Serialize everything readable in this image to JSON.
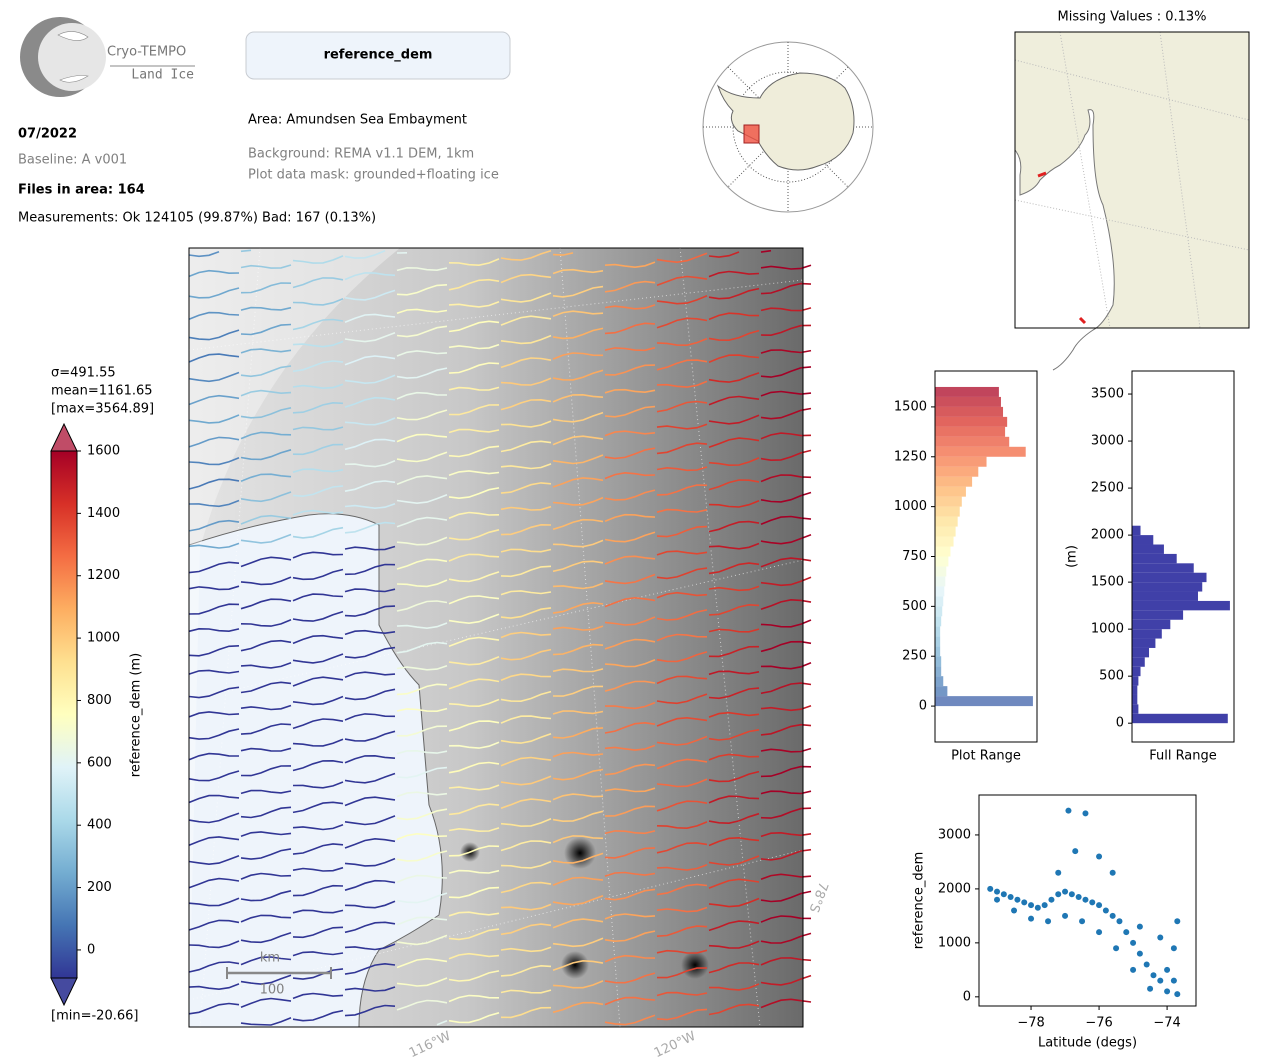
{
  "logo": {
    "title": "Cryo-TEMPO",
    "subtitle": "Land Ice"
  },
  "header": {
    "parameter": "reference_dem",
    "date": "07/2022",
    "baseline": "Baseline: A v001",
    "files": "Files in area: 164",
    "measurements": "Measurements: Ok 124105 (99.87%) Bad: 167 (0.13%)",
    "area": "Area: Amundsen Sea Embayment",
    "background": "Background: REMA v1.1 DEM, 1km",
    "mask": "Plot data mask: grounded+floating ice",
    "missing": "Missing Values : 0.13%"
  },
  "colorbar": {
    "label": "reference_dem (m)",
    "stats": [
      "σ=491.55",
      "mean=1161.65",
      "[max=3564.89]"
    ],
    "min_label": "[min=-20.66]",
    "ylim": [
      -90,
      1600
    ],
    "yticks": [
      0,
      200,
      400,
      600,
      800,
      1000,
      1200,
      1400,
      1600
    ],
    "colormap": [
      "#313695",
      "#4575b4",
      "#74add1",
      "#abd9e9",
      "#e0f3f8",
      "#ffffbf",
      "#fee090",
      "#fdae61",
      "#f46d43",
      "#d73027",
      "#a50026"
    ]
  },
  "map": {
    "lon_labels": [
      "116°W",
      "120°W"
    ],
    "lat_labels": [
      "78°S"
    ],
    "scale_unit": "km",
    "scale_length": "100"
  },
  "chart_data": [
    {
      "type": "histogram",
      "xlabel": "Plot Range",
      "ylim": [
        -180,
        1680
      ],
      "yticks": [
        0,
        250,
        500,
        750,
        1000,
        1250,
        1500
      ],
      "bins": [
        0,
        50,
        100,
        150,
        200,
        250,
        300,
        350,
        400,
        450,
        500,
        550,
        600,
        650,
        700,
        750,
        800,
        850,
        900,
        950,
        1000,
        1050,
        1100,
        1150,
        1200,
        1250,
        1300,
        1350,
        1400,
        1450,
        1500,
        1550,
        1600
      ],
      "counts": [
        95,
        12,
        8,
        6,
        6,
        5,
        5,
        5,
        6,
        7,
        8,
        9,
        10,
        11,
        13,
        15,
        18,
        20,
        22,
        24,
        26,
        30,
        36,
        42,
        50,
        88,
        72,
        68,
        70,
        66,
        64,
        62
      ]
    },
    {
      "type": "histogram",
      "xlabel": "Full Range",
      "ylabel": "(m)",
      "color": "#4040a8",
      "ylim": [
        -200,
        3745
      ],
      "yticks": [
        0,
        500,
        1000,
        1500,
        2000,
        2500,
        3000,
        3500
      ],
      "bins": [
        0,
        100,
        200,
        300,
        400,
        500,
        600,
        700,
        800,
        900,
        1000,
        1100,
        1200,
        1300,
        1400,
        1500,
        1600,
        1700,
        1800,
        1900,
        2000,
        2100
      ],
      "counts": [
        90,
        6,
        5,
        5,
        6,
        8,
        12,
        16,
        22,
        28,
        36,
        48,
        92,
        62,
        66,
        70,
        58,
        42,
        30,
        20,
        8
      ]
    },
    {
      "type": "scatter",
      "xlabel": "Latitude (degs)",
      "ylabel": "reference_dem",
      "color": "#1f77b4",
      "xlim": [
        -79.53,
        -73.15
      ],
      "ylim": [
        -170,
        3740
      ],
      "xticks": [
        {
          "value": -78,
          "label": "−78"
        },
        {
          "value": -76,
          "label": "−76"
        },
        {
          "value": -74,
          "label": "−74"
        }
      ],
      "yticks": [
        0,
        1000,
        2000,
        3000
      ],
      "x": [
        -79.2,
        -79.0,
        -78.8,
        -78.6,
        -78.4,
        -78.2,
        -78.0,
        -77.8,
        -77.6,
        -77.4,
        -77.2,
        -77.0,
        -76.8,
        -76.6,
        -76.4,
        -76.2,
        -76.0,
        -75.8,
        -75.6,
        -75.4,
        -75.2,
        -75.0,
        -74.8,
        -74.6,
        -74.4,
        -74.2,
        -74.0,
        -73.8,
        -73.7,
        -79.0,
        -78.5,
        -78.0,
        -77.5,
        -77.0,
        -76.5,
        -76.0,
        -75.5,
        -75.0,
        -74.5,
        -74.0,
        -73.7,
        -76.9,
        -76.4,
        -77.2,
        -76.7,
        -76.0,
        -75.6,
        -74.8,
        -74.2,
        -73.8
      ],
      "values": [
        2000,
        1950,
        1900,
        1850,
        1800,
        1750,
        1700,
        1650,
        1700,
        1800,
        1900,
        1950,
        1900,
        1850,
        1800,
        1750,
        1700,
        1600,
        1500,
        1400,
        1200,
        1000,
        800,
        600,
        400,
        300,
        500,
        900,
        1400,
        1800,
        1600,
        1450,
        1400,
        1500,
        1400,
        1200,
        900,
        500,
        150,
        100,
        50,
        3450,
        3400,
        2300,
        2700,
        2600,
        2300,
        1300,
        1100,
        300
      ]
    }
  ]
}
